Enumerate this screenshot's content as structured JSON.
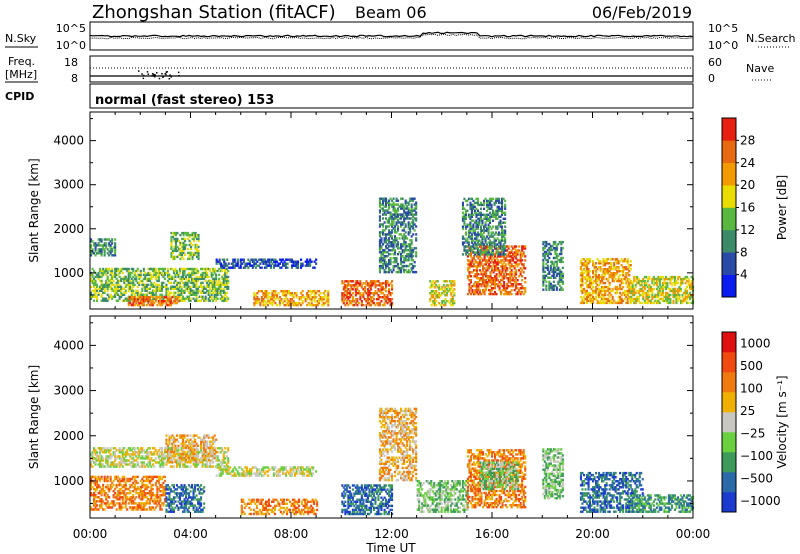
{
  "header": {
    "station": "Zhongshan Station (fitACF)",
    "beam": "Beam 06",
    "date": "06/Feb/2019"
  },
  "noise_panel": {
    "left_label": "N.Sky",
    "right_label": "N.Search",
    "left_ticks": [
      "10^5",
      "10^0"
    ],
    "right_ticks": [
      "10^5",
      "10^0"
    ]
  },
  "freq_panel": {
    "left_label_1": "Freq.",
    "left_label_2": "[MHz]",
    "right_label": "Nave",
    "left_ticks": [
      "18",
      "8"
    ],
    "right_ticks": [
      "60",
      "0"
    ]
  },
  "cpid_panel": {
    "label": "CPID",
    "text": "normal (fast stereo) 153"
  },
  "chart_data": [
    {
      "type": "heatmap",
      "title": "",
      "ylabel": "Slant Range [km]",
      "xlabel": "",
      "yticks": [
        1000,
        2000,
        3000,
        4000
      ],
      "ylim": [
        180,
        4650
      ],
      "colorbar_label": "Power [dB]",
      "colorbar_ticks": [
        "4",
        "8",
        "12",
        "16",
        "20",
        "24",
        "28"
      ],
      "colorbar_colors": [
        "#0a1cf0",
        "#2a4aa8",
        "#3b8a6a",
        "#58b840",
        "#e8dc00",
        "#f29a00",
        "#e86a10",
        "#e82010"
      ],
      "echo_regions": [
        {
          "t0": 0.0,
          "t1": 1.0,
          "r0": 1380,
          "r1": 1750,
          "level": 2
        },
        {
          "t0": 0.0,
          "t1": 5.5,
          "r0": 350,
          "r1": 1100,
          "level": 3
        },
        {
          "t0": 1.5,
          "t1": 3.5,
          "r0": 250,
          "r1": 450,
          "level": 6
        },
        {
          "t0": 3.2,
          "t1": 4.3,
          "r0": 1300,
          "r1": 1900,
          "level": 3
        },
        {
          "t0": 5.0,
          "t1": 9.0,
          "r0": 1100,
          "r1": 1300,
          "level": 1
        },
        {
          "t0": 6.5,
          "t1": 9.5,
          "r0": 250,
          "r1": 600,
          "level": 5
        },
        {
          "t0": 10.0,
          "t1": 12.0,
          "r0": 250,
          "r1": 800,
          "level": 6
        },
        {
          "t0": 11.5,
          "t1": 13.0,
          "r0": 1000,
          "r1": 2700,
          "level": 2
        },
        {
          "t0": 13.5,
          "t1": 14.5,
          "r0": 250,
          "r1": 800,
          "level": 4
        },
        {
          "t0": 15.0,
          "t1": 17.3,
          "r0": 500,
          "r1": 1600,
          "level": 6
        },
        {
          "t0": 14.8,
          "t1": 16.5,
          "r0": 1400,
          "r1": 2700,
          "level": 2
        },
        {
          "t0": 18.0,
          "t1": 18.8,
          "r0": 600,
          "r1": 1700,
          "level": 2
        },
        {
          "t0": 19.5,
          "t1": 21.5,
          "r0": 300,
          "r1": 1300,
          "level": 5
        },
        {
          "t0": 21.5,
          "t1": 24.0,
          "r0": 300,
          "r1": 900,
          "level": 4
        }
      ]
    },
    {
      "type": "heatmap",
      "title": "",
      "ylabel": "Slant Range [km]",
      "xlabel": "Time UT",
      "yticks": [
        1000,
        2000,
        3000,
        4000
      ],
      "ylim": [
        180,
        4650
      ],
      "xticks": [
        "00:00",
        "04:00",
        "08:00",
        "12:00",
        "16:00",
        "20:00",
        "00:00"
      ],
      "xlim_hours": [
        0,
        24
      ],
      "colorbar_label": "Velocity [m s⁻¹]",
      "colorbar_ticks": [
        "1000",
        "500",
        "100",
        "25",
        "−25",
        "−100",
        "−500",
        "−1000"
      ],
      "colorbar_colors": [
        "#1a3ad0",
        "#2a6aa8",
        "#3c9a5a",
        "#6ad040",
        "#c8c8c0",
        "#f0b000",
        "#f07a10",
        "#f04a10",
        "#e01010"
      ],
      "echo_regions": [
        {
          "t0": 0.0,
          "t1": 5.5,
          "r0": 1300,
          "r1": 1750,
          "level": 4
        },
        {
          "t0": 0.0,
          "t1": 3.0,
          "r0": 350,
          "r1": 1100,
          "level": 6
        },
        {
          "t0": 3.0,
          "t1": 5.0,
          "r0": 1400,
          "r1": 2000,
          "level": 5
        },
        {
          "t0": 3.0,
          "t1": 4.5,
          "r0": 300,
          "r1": 900,
          "level": 1
        },
        {
          "t0": 5.0,
          "t1": 9.0,
          "r0": 1100,
          "r1": 1300,
          "level": 4
        },
        {
          "t0": 6.0,
          "t1": 9.0,
          "r0": 250,
          "r1": 600,
          "level": 6
        },
        {
          "t0": 10.0,
          "t1": 12.0,
          "r0": 250,
          "r1": 900,
          "level": 1
        },
        {
          "t0": 11.5,
          "t1": 13.0,
          "r0": 1000,
          "r1": 2600,
          "level": 5
        },
        {
          "t0": 13.0,
          "t1": 15.0,
          "r0": 300,
          "r1": 1000,
          "level": 3
        },
        {
          "t0": 15.0,
          "t1": 17.3,
          "r0": 400,
          "r1": 1700,
          "level": 6
        },
        {
          "t0": 15.5,
          "t1": 17.0,
          "r0": 800,
          "r1": 1400,
          "level": 3
        },
        {
          "t0": 18.0,
          "t1": 18.8,
          "r0": 600,
          "r1": 1700,
          "level": 3
        },
        {
          "t0": 19.5,
          "t1": 22.0,
          "r0": 300,
          "r1": 1200,
          "level": 1
        },
        {
          "t0": 21.5,
          "t1": 24.0,
          "r0": 300,
          "r1": 700,
          "level": 2
        }
      ]
    }
  ]
}
